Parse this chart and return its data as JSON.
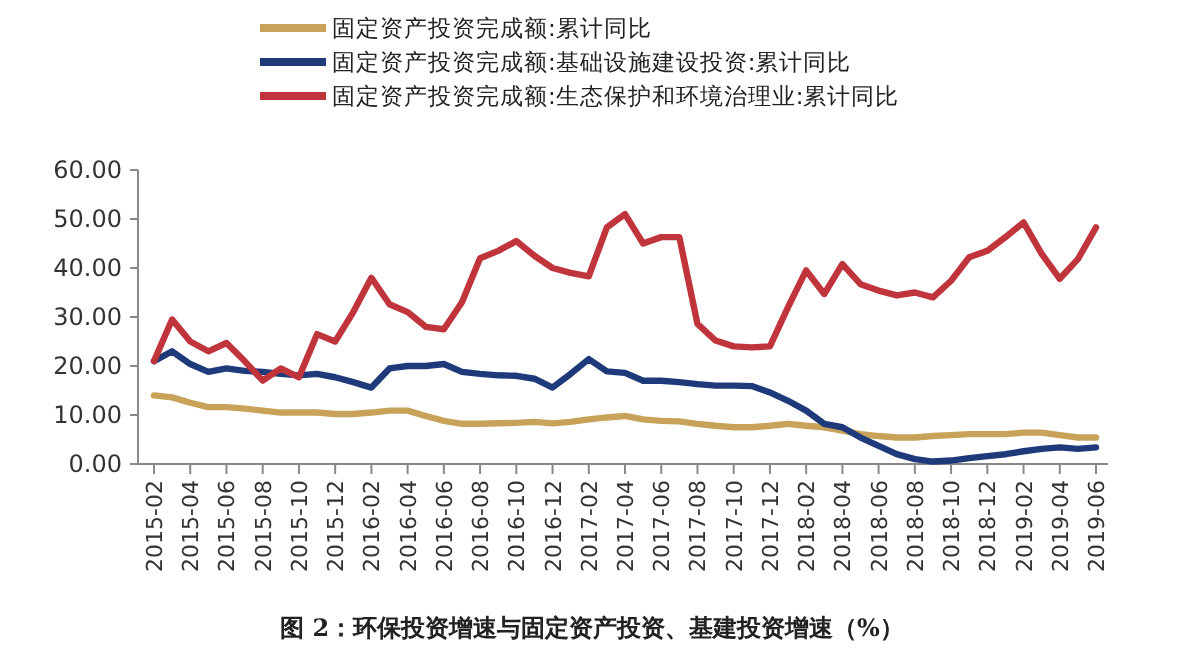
{
  "chart_data": {
    "type": "line",
    "legend": "top",
    "grid": false,
    "marker": "none",
    "line_style": "solid",
    "categories": [
      "2015-02",
      null,
      "2015-04",
      null,
      "2015-06",
      null,
      "2015-08",
      null,
      "2015-10",
      null,
      "2015-12",
      null,
      "2016-02",
      null,
      "2016-04",
      null,
      "2016-06",
      null,
      "2016-08",
      null,
      "2016-10",
      null,
      "2016-12",
      null,
      "2017-02",
      null,
      "2017-04",
      null,
      "2017-06",
      null,
      "2017-08",
      null,
      "2017-10",
      null,
      "2017-12",
      null,
      "2018-02",
      null,
      "2018-04",
      null,
      "2018-06",
      null,
      "2018-08",
      null,
      "2018-10",
      null,
      "2018-12",
      null,
      "2019-02",
      null,
      "2019-04",
      null,
      "2019-06"
    ],
    "ylim": [
      0,
      60
    ],
    "yticks": [
      {
        "value": 0,
        "label": "0.00"
      },
      {
        "value": 10,
        "label": "10.00"
      },
      {
        "value": 20,
        "label": "20.00"
      },
      {
        "value": 30,
        "label": "30.00"
      },
      {
        "value": 40,
        "label": "40.00"
      },
      {
        "value": 50,
        "label": "50.00"
      },
      {
        "value": 60,
        "label": "60.00"
      }
    ],
    "series": [
      {
        "name": "固定资产投资完成额:累计同比",
        "color": "#c9a25a",
        "values": [
          14,
          13.6,
          12.5,
          11.6,
          11.6,
          11.3,
          10.9,
          10.5,
          10.5,
          10.5,
          10.2,
          10.2,
          10.5,
          10.9,
          10.9,
          9.8,
          8.8,
          8.2,
          8.2,
          8.3,
          8.4,
          8.6,
          8.3,
          8.6,
          9.1,
          9.5,
          9.8,
          9.1,
          8.8,
          8.7,
          8.2,
          7.8,
          7.5,
          7.5,
          7.8,
          8.2,
          7.8,
          7.5,
          6.8,
          6.1,
          5.7,
          5.4,
          5.4,
          5.7,
          5.9,
          6.1,
          6.1,
          6.1,
          6.4,
          6.4,
          5.9,
          5.4,
          5.4
        ]
      },
      {
        "name": "固定资产投资完成额:基础设施建设投资:累计同比",
        "color": "#1f3a7a",
        "values": [
          21,
          23,
          20.4,
          18.8,
          19.5,
          19,
          18.8,
          18.4,
          18.1,
          18.4,
          17.7,
          16.7,
          15.6,
          19.5,
          20,
          20,
          20.4,
          18.8,
          18.4,
          18.1,
          18,
          17.4,
          15.6,
          18.4,
          21.4,
          18.9,
          18.6,
          17,
          17,
          16.7,
          16.3,
          16,
          16,
          15.9,
          14.6,
          12.9,
          10.9,
          8.2,
          7.5,
          5.4,
          3.7,
          2,
          1,
          0.5,
          0.7,
          1.2,
          1.6,
          2,
          2.6,
          3.1,
          3.4,
          3.1,
          3.4
        ]
      },
      {
        "name": "固定资产投资完成额:生态保护和环境治理业:累计同比",
        "color": "#c0343c",
        "values": [
          21,
          29.5,
          25,
          23,
          24.7,
          21,
          17,
          19.5,
          17.7,
          26.5,
          25,
          31,
          38,
          32.6,
          31,
          28,
          27.5,
          33,
          42,
          43.5,
          45.5,
          42.5,
          40,
          39,
          38.3,
          48.3,
          51,
          45,
          46.3,
          46.3,
          28.6,
          25.2,
          24,
          23.8,
          24,
          32,
          39.5,
          34.7,
          40.8,
          36.7,
          35.4,
          34.4,
          35,
          34,
          37.4,
          42.2,
          43.5,
          46.3,
          49.3,
          42.9,
          37.8,
          41.8,
          48.3
        ]
      }
    ],
    "annotations": [
      "图 2：环保投资增速与固定资产投资、基建投资增速（%）"
    ]
  }
}
